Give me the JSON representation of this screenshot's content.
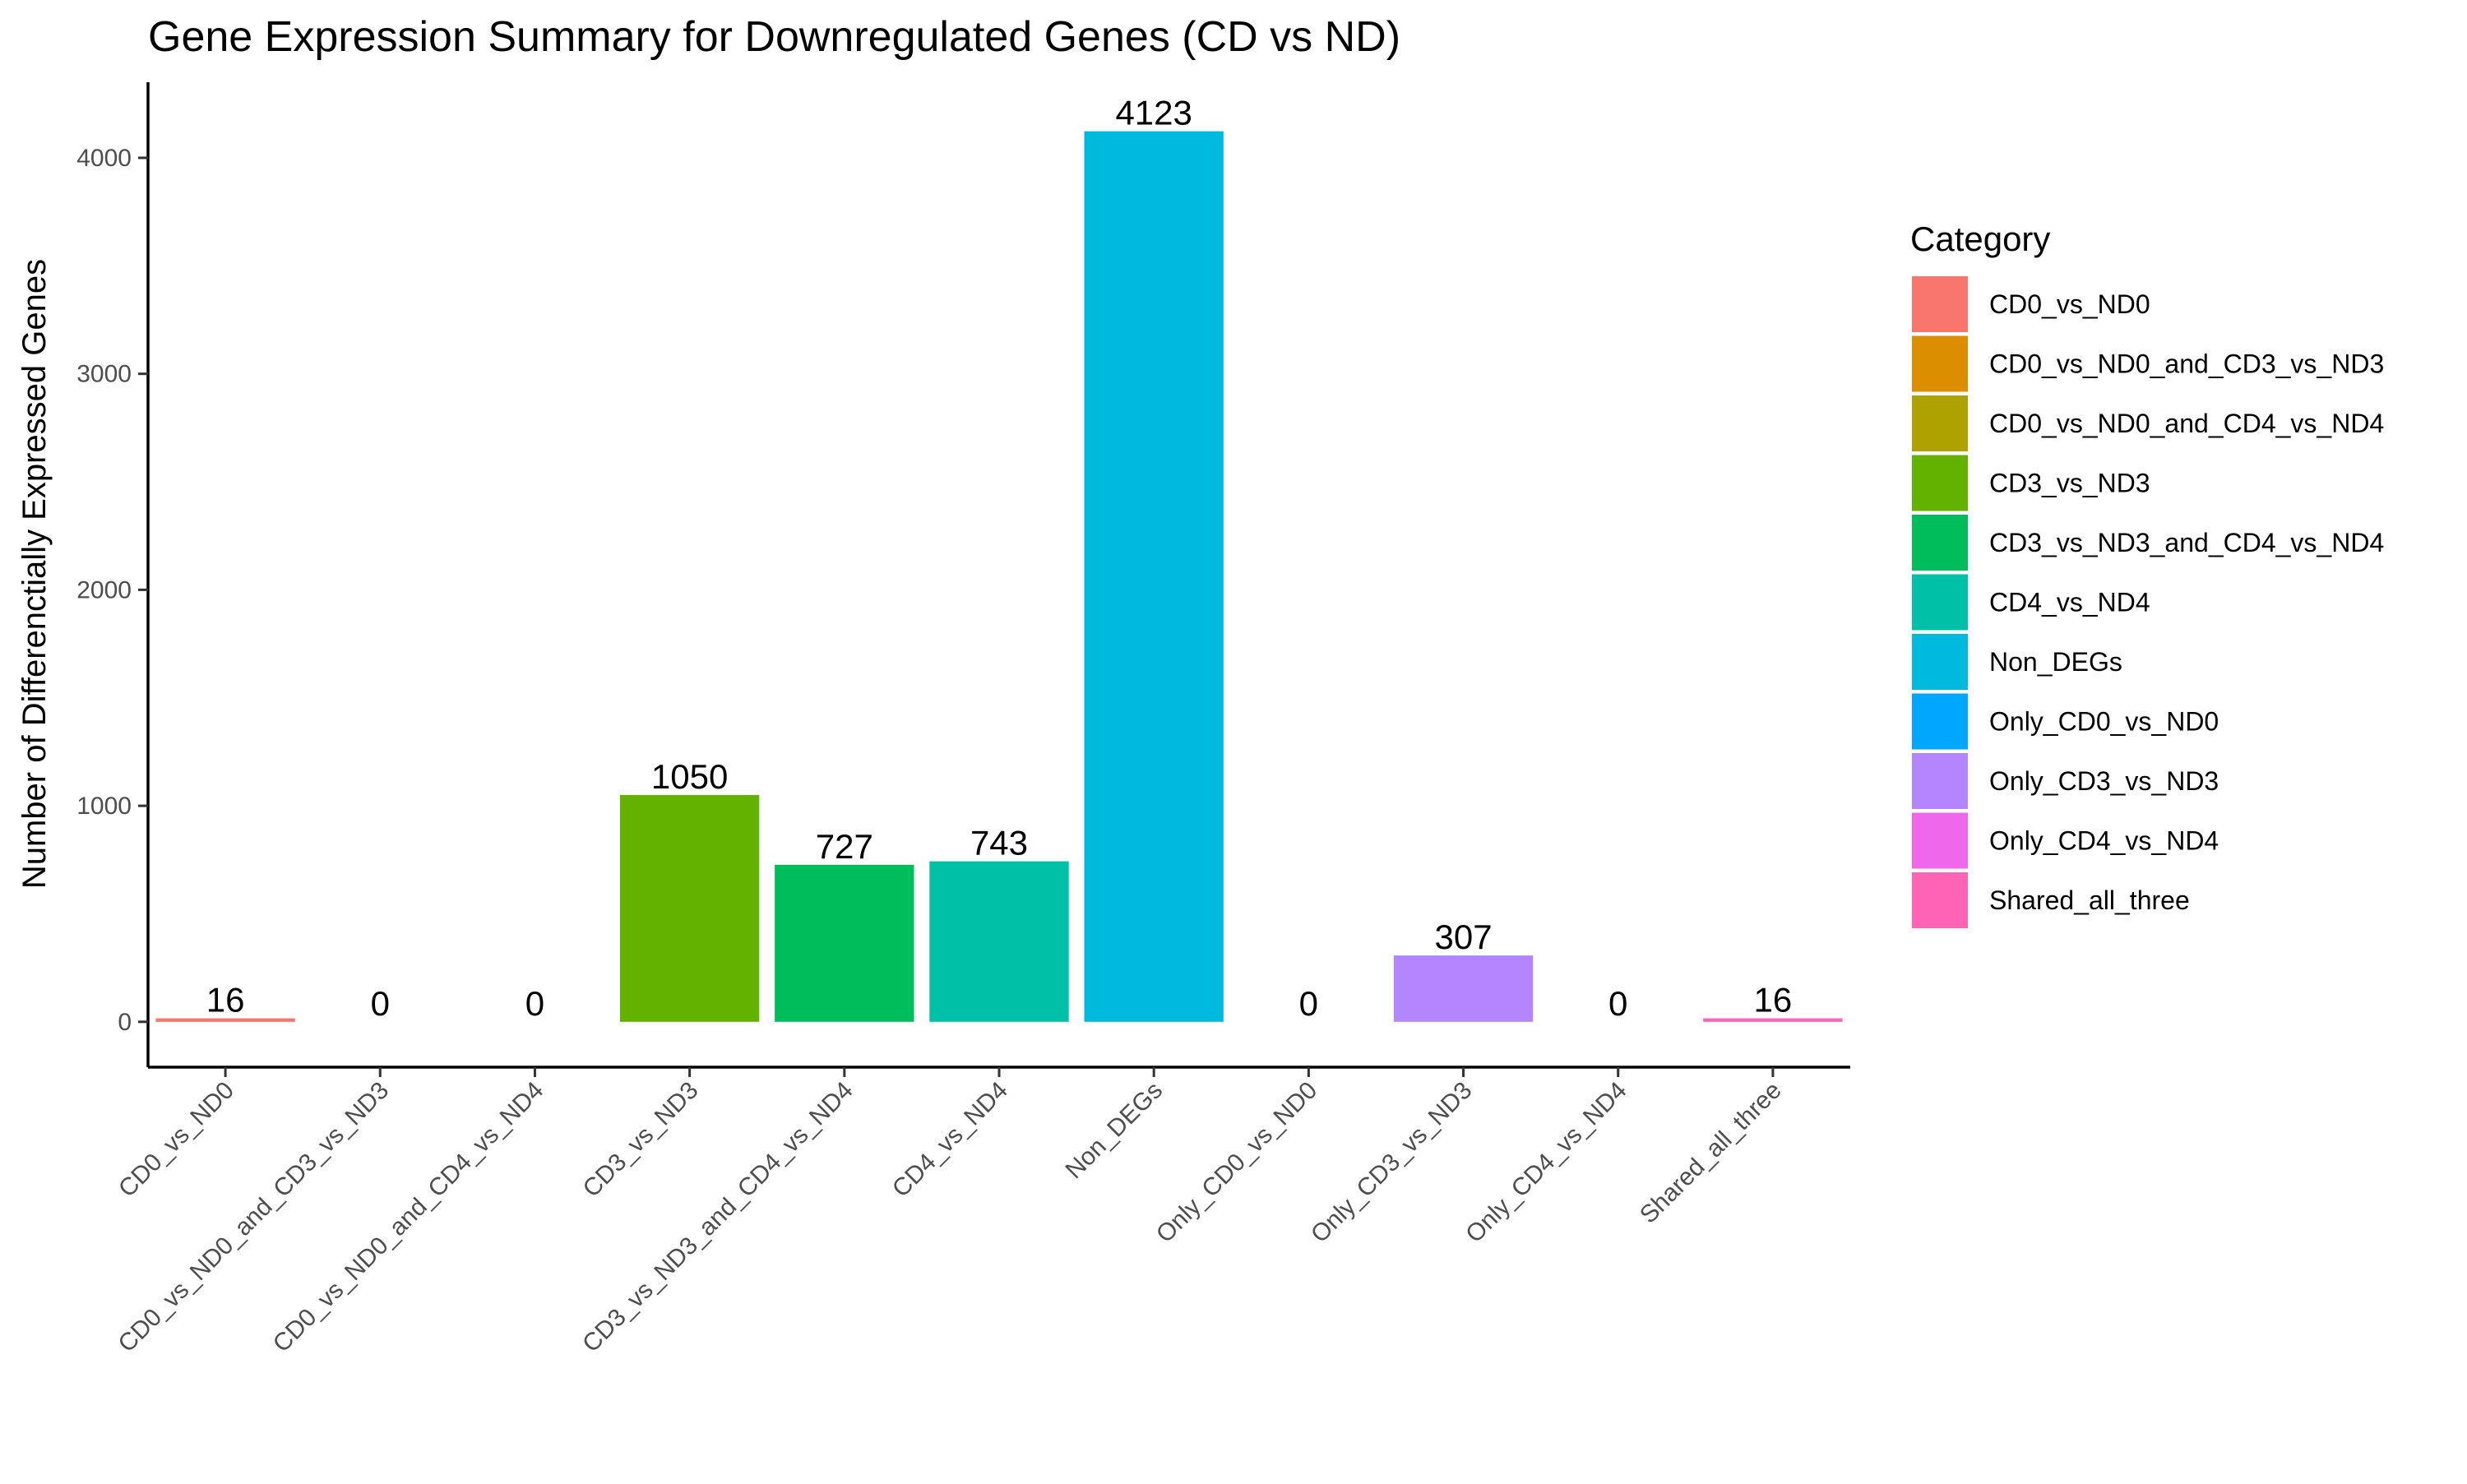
{
  "chart_data": {
    "type": "bar",
    "title": "Gene Expression Summary for Downregulated Genes (CD vs ND)",
    "xlabel": "",
    "ylabel": "Number of Differenctially Expressed Genes",
    "ylim": [
      -210,
      4350
    ],
    "yticks": [
      0,
      1000,
      2000,
      3000,
      4000
    ],
    "grid": false,
    "legend_position": "right",
    "legend_title": "Category",
    "categories": [
      "CD0_vs_ND0",
      "CD0_vs_ND0_and_CD3_vs_ND3",
      "CD0_vs_ND0_and_CD4_vs_ND4",
      "CD3_vs_ND3",
      "CD3_vs_ND3_and_CD4_vs_ND4",
      "CD4_vs_ND4",
      "Non_DEGs",
      "Only_CD0_vs_ND0",
      "Only_CD3_vs_ND3",
      "Only_CD4_vs_ND4",
      "Shared_all_three"
    ],
    "values": [
      16,
      0,
      0,
      1050,
      727,
      743,
      4123,
      0,
      307,
      0,
      16
    ],
    "colors": [
      "#F8766D",
      "#DB8E00",
      "#AEA200",
      "#64B200",
      "#00BD5C",
      "#00C1A7",
      "#00BADE",
      "#00A6FF",
      "#B385FF",
      "#EF67EB",
      "#FF63B6"
    ]
  }
}
